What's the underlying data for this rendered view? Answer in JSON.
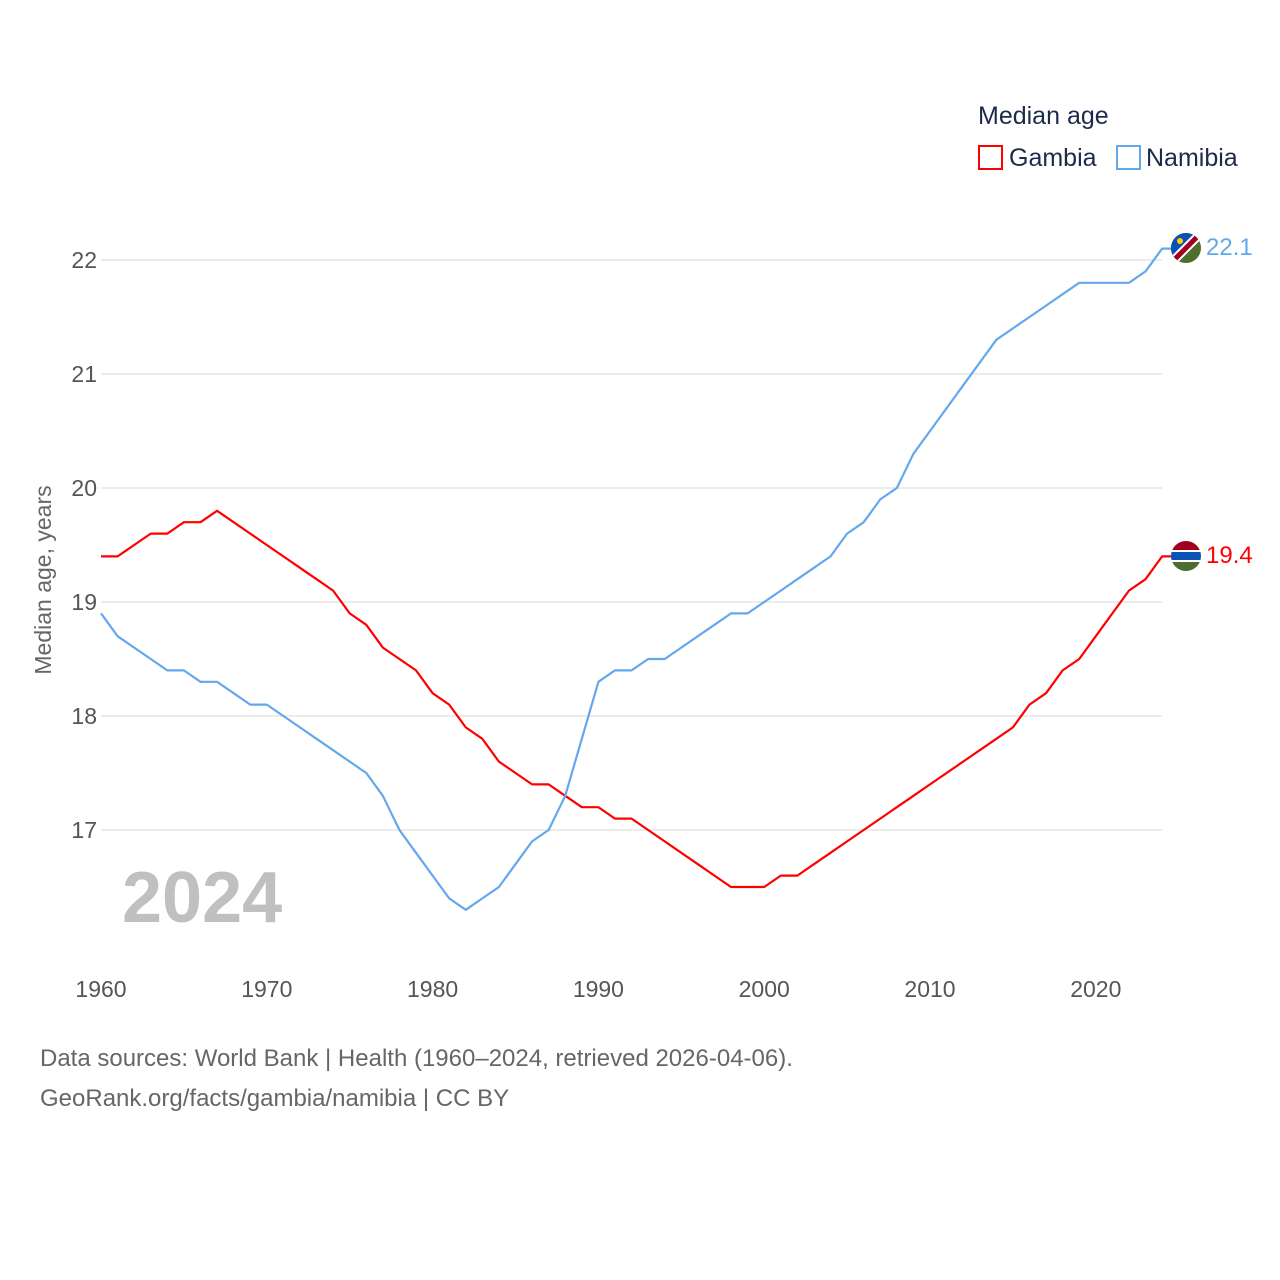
{
  "chart_data": {
    "type": "line",
    "title": "",
    "legend_title": "Median age",
    "legend_position": "top-right",
    "xlabel": "",
    "ylabel": "Median age, years",
    "xlim": [
      1960,
      2024
    ],
    "ylim": [
      16,
      22
    ],
    "x_ticks": [
      "1960",
      "1970",
      "1980",
      "1990",
      "2000",
      "2010",
      "2020"
    ],
    "y_ticks": [
      "17",
      "18",
      "19",
      "20",
      "21",
      "22"
    ],
    "grid": true,
    "year_watermark": "2024",
    "x": [
      1960,
      1961,
      1962,
      1963,
      1964,
      1965,
      1966,
      1967,
      1968,
      1969,
      1970,
      1971,
      1972,
      1973,
      1974,
      1975,
      1976,
      1977,
      1978,
      1979,
      1980,
      1981,
      1982,
      1983,
      1984,
      1985,
      1986,
      1987,
      1988,
      1989,
      1990,
      1991,
      1992,
      1993,
      1994,
      1995,
      1996,
      1997,
      1998,
      1999,
      2000,
      2001,
      2002,
      2003,
      2004,
      2005,
      2006,
      2007,
      2008,
      2009,
      2010,
      2011,
      2012,
      2013,
      2014,
      2015,
      2016,
      2017,
      2018,
      2019,
      2020,
      2021,
      2022,
      2023,
      2024
    ],
    "series": [
      {
        "name": "Gambia",
        "color": "#ff0000",
        "end_label": "19.4",
        "values": [
          19.4,
          19.4,
          19.5,
          19.6,
          19.6,
          19.7,
          19.7,
          19.8,
          19.7,
          19.6,
          19.5,
          19.4,
          19.3,
          19.2,
          19.1,
          18.9,
          18.8,
          18.6,
          18.5,
          18.4,
          18.2,
          18.1,
          17.9,
          17.8,
          17.6,
          17.5,
          17.4,
          17.4,
          17.3,
          17.2,
          17.2,
          17.1,
          17.1,
          17.0,
          16.9,
          16.8,
          16.7,
          16.6,
          16.5,
          16.5,
          16.5,
          16.6,
          16.6,
          16.7,
          16.8,
          16.9,
          17.0,
          17.1,
          17.2,
          17.3,
          17.4,
          17.5,
          17.6,
          17.7,
          17.8,
          17.9,
          18.1,
          18.2,
          18.4,
          18.5,
          18.7,
          18.9,
          19.1,
          19.2,
          19.4
        ]
      },
      {
        "name": "Namibia",
        "color": "#63a8ed",
        "end_label": "22.1",
        "values": [
          18.9,
          18.7,
          18.6,
          18.5,
          18.4,
          18.4,
          18.3,
          18.3,
          18.2,
          18.1,
          18.1,
          18.0,
          17.9,
          17.8,
          17.7,
          17.6,
          17.5,
          17.3,
          17.0,
          16.8,
          16.6,
          16.4,
          16.3,
          16.4,
          16.5,
          16.7,
          16.9,
          17.0,
          17.3,
          17.8,
          18.3,
          18.4,
          18.4,
          18.5,
          18.5,
          18.6,
          18.7,
          18.8,
          18.9,
          18.9,
          19.0,
          19.1,
          19.2,
          19.3,
          19.4,
          19.6,
          19.7,
          19.9,
          20.0,
          20.3,
          20.5,
          20.7,
          20.9,
          21.1,
          21.3,
          21.4,
          21.5,
          21.6,
          21.7,
          21.8,
          21.8,
          21.8,
          21.8,
          21.9,
          22.1
        ]
      }
    ]
  },
  "footer": {
    "sources": "Data sources: World Bank | Health (1960–2024, retrieved 2026-04-06).",
    "credit": "GeoRank.org/facts/gambia/namibia | CC BY"
  }
}
